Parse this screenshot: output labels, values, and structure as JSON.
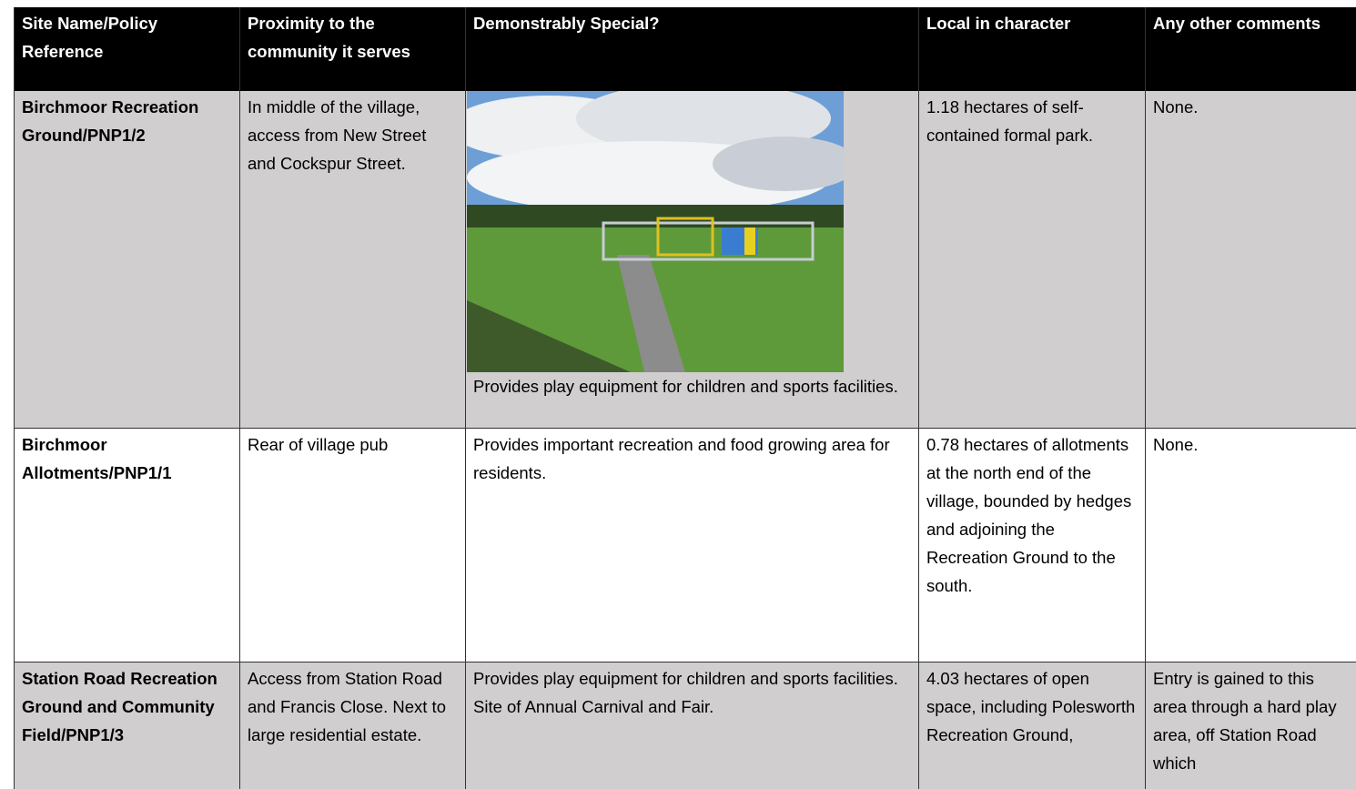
{
  "table": {
    "header": [
      "Site Name/Policy Reference",
      "Proximity to the community it serves",
      "Demonstrably Special?",
      "Local in character",
      "Any other comments"
    ],
    "rows": [
      [
        "Birchmoor Recreation Ground/PNP1/2",
        "In middle of the village, access from New Street and Cockspur Street.",
        "Provides play equipment for children and sports facilities.",
        "1.18 hectares of self-contained formal park.",
        "None."
      ],
      [
        "Birchmoor Allotments/PNP1/1",
        "Rear of village pub",
        "Provides important recreation and food growing area for residents.",
        "0.78 hectares of allotments at the north end of the village, bounded by hedges and adjoining the Recreation Ground to the south.",
        "None."
      ],
      [
        "Station Road Recreation Ground and Community Field/PNP1/3",
        "Access from Station Road and Francis Close. Next to large residential estate.",
        "Provides play equipment for children and sports facilities. Site of Annual Carnival and Fair.",
        "4.03 hectares of open space, including Polesworth Recreation Ground,",
        "Entry is gained  to this area through a hard play area, off Station Road which"
      ]
    ]
  }
}
